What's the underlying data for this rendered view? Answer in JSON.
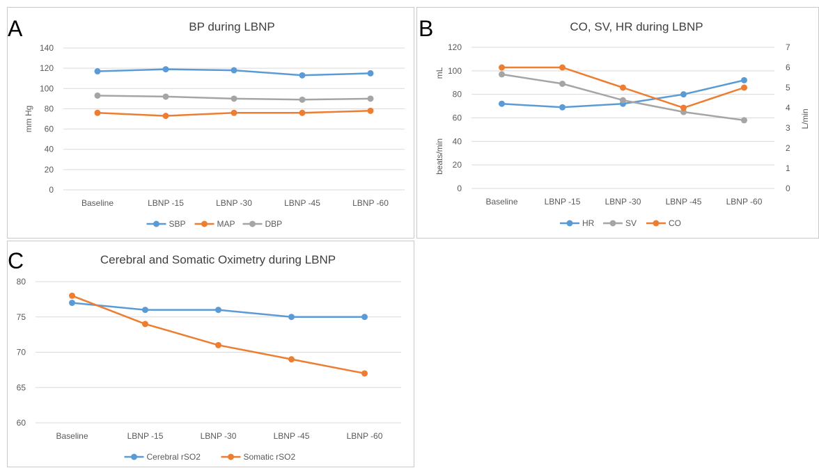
{
  "colors": {
    "blue": "#5b9bd5",
    "orange": "#ed7d31",
    "gray": "#a5a5a5",
    "grid": "#d9d9d9",
    "axis_text": "#595959",
    "title_text": "#404040"
  },
  "panels": {
    "a": {
      "letter": "A"
    },
    "b": {
      "letter": "B"
    },
    "c": {
      "letter": "C"
    }
  },
  "chart_data": [
    {
      "type": "line",
      "title": "BP during LBNP",
      "categories": [
        "Baseline",
        "LBNP -15",
        "LBNP -30",
        "LBNP -45",
        "LBNP -60"
      ],
      "ylabel": "mm Hg",
      "ylim": [
        0,
        140
      ],
      "yticks": [
        "0",
        "20",
        "40",
        "60",
        "80",
        "100",
        "120",
        "140"
      ],
      "grid": true,
      "legend": "bottom",
      "series": [
        {
          "name": "SBP",
          "values": [
            117,
            119,
            118,
            113,
            115
          ],
          "color": "#5b9bd5"
        },
        {
          "name": "MAP",
          "values": [
            76,
            73,
            76,
            76,
            78
          ],
          "color": "#ed7d31"
        },
        {
          "name": "DBP",
          "values": [
            93,
            92,
            90,
            89,
            90
          ],
          "color": "#a5a5a5"
        }
      ]
    },
    {
      "type": "line",
      "title": "CO, SV, HR during LBNP",
      "categories": [
        "Baseline",
        "LBNP -15",
        "LBNP -30",
        "LBNP -45",
        "LBNP -60"
      ],
      "ylabel": "beats/min",
      "ylabel_top": "mL",
      "y2label": "L/min",
      "ylim": [
        0,
        120
      ],
      "y2lim": [
        0,
        7
      ],
      "yticks": [
        "0",
        "20",
        "40",
        "60",
        "80",
        "100",
        "120"
      ],
      "y2ticks": [
        "0",
        "1",
        "2",
        "3",
        "4",
        "5",
        "6",
        "7"
      ],
      "grid": true,
      "legend": "bottom",
      "series": [
        {
          "name": "HR",
          "values": [
            72,
            69,
            72,
            80,
            92
          ],
          "axis": "left",
          "color": "#5b9bd5"
        },
        {
          "name": "SV",
          "values": [
            97,
            89,
            75,
            65,
            58
          ],
          "axis": "left",
          "color": "#a5a5a5"
        },
        {
          "name": "CO",
          "values": [
            6.0,
            6.0,
            5.0,
            4.0,
            5.0
          ],
          "axis": "right",
          "color": "#ed7d31"
        }
      ]
    },
    {
      "type": "line",
      "title": "Cerebral and Somatic Oximetry during LBNP",
      "categories": [
        "Baseline",
        "LBNP -15",
        "LBNP -30",
        "LBNP -45",
        "LBNP -60"
      ],
      "ylim": [
        60,
        80
      ],
      "yticks": [
        "60",
        "65",
        "70",
        "75",
        "80"
      ],
      "grid": true,
      "legend": "bottom",
      "series": [
        {
          "name": "Cerebral rSO2",
          "values": [
            77,
            76,
            76,
            75,
            75
          ],
          "color": "#5b9bd5"
        },
        {
          "name": "Somatic rSO2",
          "values": [
            78,
            74,
            71,
            69,
            67
          ],
          "color": "#ed7d31"
        }
      ]
    }
  ]
}
